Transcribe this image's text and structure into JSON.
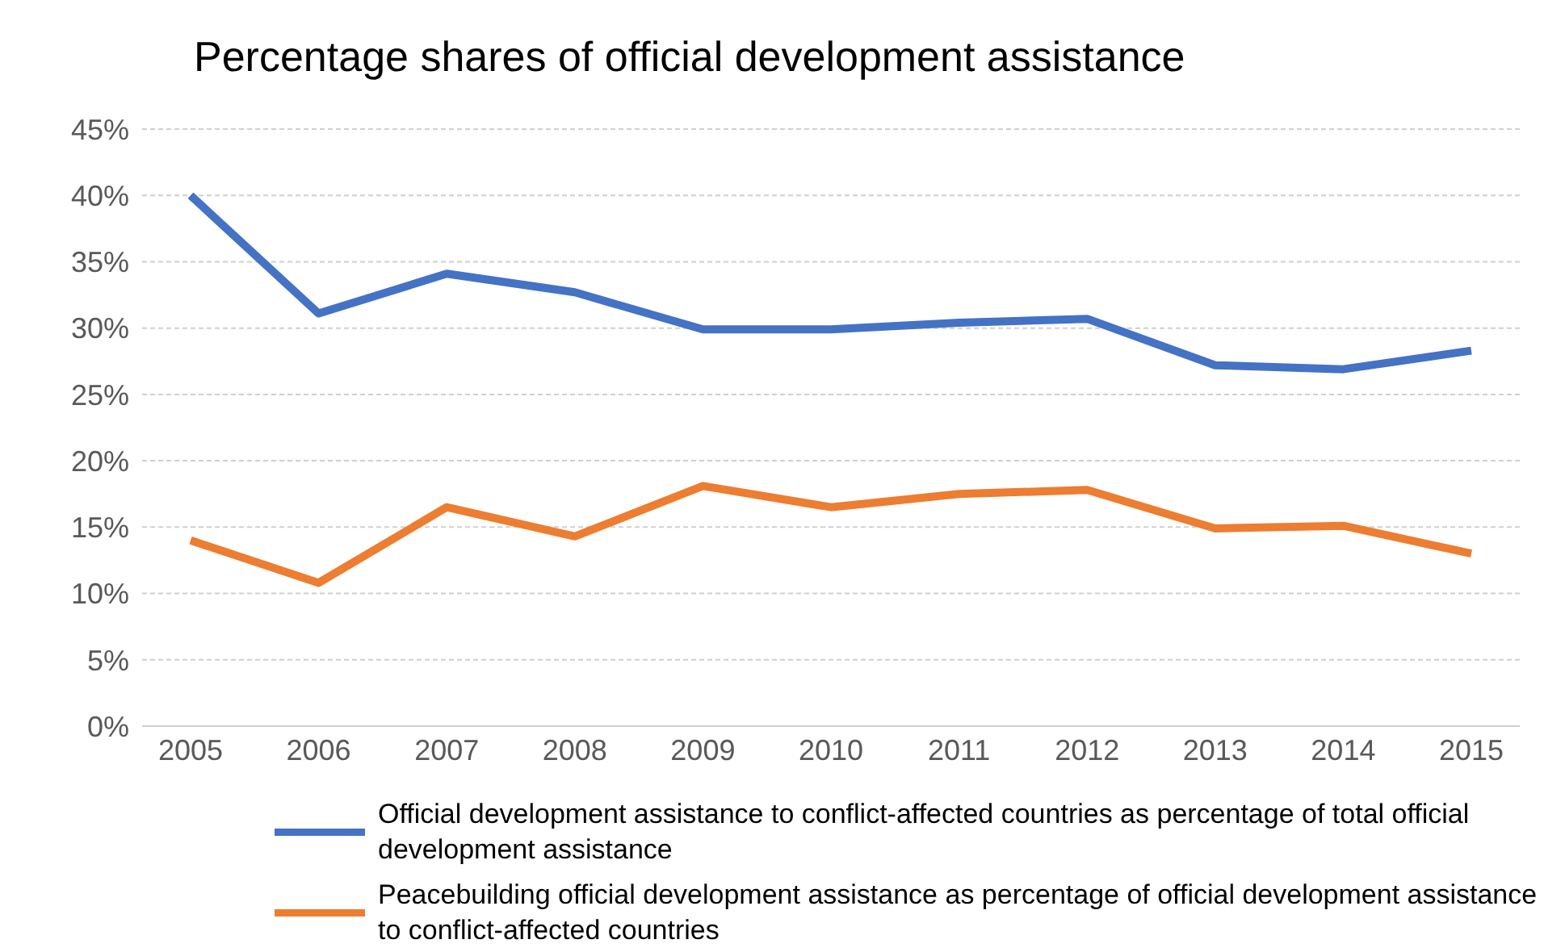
{
  "chart_data": {
    "type": "line",
    "title": "Percentage shares of official development assistance",
    "categories": [
      "2005",
      "2006",
      "2007",
      "2008",
      "2009",
      "2010",
      "2011",
      "2012",
      "2013",
      "2014",
      "2015"
    ],
    "series": [
      {
        "name": "Official development assistance to conflict-affected countries as percentage of total official development assistance",
        "color": "#4472c4",
        "values": [
          40.0,
          31.1,
          34.1,
          32.7,
          29.9,
          29.9,
          30.4,
          30.7,
          27.2,
          26.9,
          28.3
        ]
      },
      {
        "name": "Peacebuilding official development assistance as percentage of official development assistance to conflict-affected countries",
        "color": "#ed7d31",
        "values": [
          14.0,
          10.8,
          16.5,
          14.3,
          18.1,
          16.5,
          17.5,
          17.8,
          14.9,
          15.1,
          13.0
        ]
      }
    ],
    "ylim": [
      0,
      45
    ],
    "yticks": [
      {
        "value": 0,
        "label": "0%"
      },
      {
        "value": 5,
        "label": "5%"
      },
      {
        "value": 10,
        "label": "10%"
      },
      {
        "value": 15,
        "label": "15%"
      },
      {
        "value": 20,
        "label": "20%"
      },
      {
        "value": 25,
        "label": "25%"
      },
      {
        "value": 30,
        "label": "30%"
      },
      {
        "value": 35,
        "label": "35%"
      },
      {
        "value": 40,
        "label": "40%"
      },
      {
        "value": 45,
        "label": "45%"
      }
    ],
    "grid": "y",
    "legend": "bottom right",
    "marker": "none",
    "line_style": "solid"
  }
}
